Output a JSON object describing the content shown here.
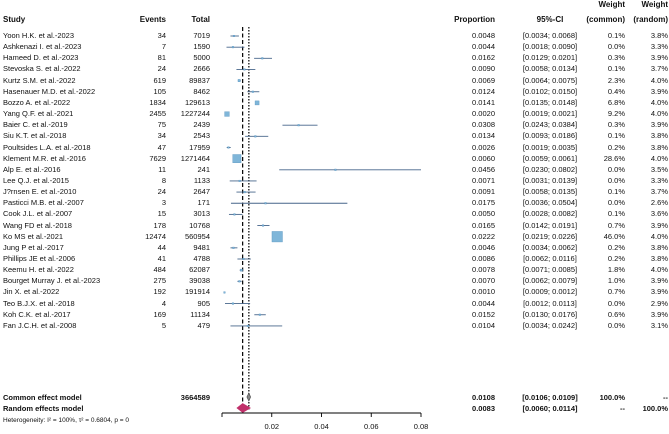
{
  "headers": {
    "study": "Study",
    "events": "Events",
    "total": "Total",
    "proportion": "Proportion",
    "ci": "95%-CI",
    "weight_common": [
      "Weight",
      "(common)"
    ],
    "weight_random": [
      "Weight",
      "(random)"
    ]
  },
  "rows": [
    {
      "study": "Yoon H.K. et al.-2023",
      "events": "34",
      "total": "7019",
      "proportion": "0.0048",
      "ci": "[0.0034; 0.0068]",
      "w_common": "0.1%",
      "w_random": "3.8%"
    },
    {
      "study": "Ashkenazi I. et al.-2023",
      "events": "7",
      "total": "1590",
      "proportion": "0.0044",
      "ci": "[0.0018; 0.0090]",
      "w_common": "0.0%",
      "w_random": "3.3%"
    },
    {
      "study": "Hameed D. et al.-2023",
      "events": "81",
      "total": "5000",
      "proportion": "0.0162",
      "ci": "[0.0129; 0.0201]",
      "w_common": "0.3%",
      "w_random": "3.9%"
    },
    {
      "study": "Stevoska S. et al.-2022",
      "events": "24",
      "total": "2666",
      "proportion": "0.0090",
      "ci": "[0.0058; 0.0134]",
      "w_common": "0.1%",
      "w_random": "3.7%"
    },
    {
      "study": "Kurtz S.M. et al.-2022",
      "events": "619",
      "total": "89837",
      "proportion": "0.0069",
      "ci": "[0.0064; 0.0075]",
      "w_common": "2.3%",
      "w_random": "4.0%"
    },
    {
      "study": "Hasenauer M.D. et al.-2022",
      "events": "105",
      "total": "8462",
      "proportion": "0.0124",
      "ci": "[0.0102; 0.0150]",
      "w_common": "0.4%",
      "w_random": "3.9%"
    },
    {
      "study": "Bozzo A. et al.-2022",
      "events": "1834",
      "total": "129613",
      "proportion": "0.0141",
      "ci": "[0.0135; 0.0148]",
      "w_common": "6.8%",
      "w_random": "4.0%"
    },
    {
      "study": "Yang Q.F. et al.-2021",
      "events": "2455",
      "total": "1227244",
      "proportion": "0.0020",
      "ci": "[0.0019; 0.0021]",
      "w_common": "9.2%",
      "w_random": "4.0%"
    },
    {
      "study": "Baier C. et al.-2019",
      "events": "75",
      "total": "2439",
      "proportion": "0.0308",
      "ci": "[0.0243; 0.0384]",
      "w_common": "0.3%",
      "w_random": "3.9%"
    },
    {
      "study": "Siu K.T. et al.-2018",
      "events": "34",
      "total": "2543",
      "proportion": "0.0134",
      "ci": "[0.0093; 0.0186]",
      "w_common": "0.1%",
      "w_random": "3.8%"
    },
    {
      "study": "Poultsides L.A. et al.-2018",
      "events": "47",
      "total": "17959",
      "proportion": "0.0026",
      "ci": "[0.0019; 0.0035]",
      "w_common": "0.2%",
      "w_random": "3.8%"
    },
    {
      "study": "Klement M.R. et al.-2016",
      "events": "7629",
      "total": "1271464",
      "proportion": "0.0060",
      "ci": "[0.0059; 0.0061]",
      "w_common": "28.6%",
      "w_random": "4.0%"
    },
    {
      "study": "Alp E. et al.-2016",
      "events": "11",
      "total": "241",
      "proportion": "0.0456",
      "ci": "[0.0230; 0.0802]",
      "w_common": "0.0%",
      "w_random": "3.5%"
    },
    {
      "study": "Lee Q.J. et al.-2015",
      "events": "8",
      "total": "1133",
      "proportion": "0.0071",
      "ci": "[0.0031; 0.0139]",
      "w_common": "0.0%",
      "w_random": "3.3%"
    },
    {
      "study": "J?rnsen E. et al.-2010",
      "events": "24",
      "total": "2647",
      "proportion": "0.0091",
      "ci": "[0.0058; 0.0135]",
      "w_common": "0.1%",
      "w_random": "3.7%"
    },
    {
      "study": "Pasticci M.B. et al.-2007",
      "events": "3",
      "total": "171",
      "proportion": "0.0175",
      "ci": "[0.0036; 0.0504]",
      "w_common": "0.0%",
      "w_random": "2.6%"
    },
    {
      "study": "Cook J.L. et al.-2007",
      "events": "15",
      "total": "3013",
      "proportion": "0.0050",
      "ci": "[0.0028; 0.0082]",
      "w_common": "0.1%",
      "w_random": "3.6%"
    },
    {
      "study": "Wang FD et al.-2018",
      "events": "178",
      "total": "10768",
      "proportion": "0.0165",
      "ci": "[0.0142; 0.0191]",
      "w_common": "0.7%",
      "w_random": "3.9%"
    },
    {
      "study": "Ko MS et al.-2021",
      "events": "12474",
      "total": "560954",
      "proportion": "0.0222",
      "ci": "[0.0219; 0.0226]",
      "w_common": "46.0%",
      "w_random": "4.0%"
    },
    {
      "study": "Jung P et al.-2017",
      "events": "44",
      "total": "9481",
      "proportion": "0.0046",
      "ci": "[0.0034; 0.0062]",
      "w_common": "0.2%",
      "w_random": "3.8%"
    },
    {
      "study": "Phillips JE et al.-2006",
      "events": "41",
      "total": "4788",
      "proportion": "0.0086",
      "ci": "[0.0062; 0.0116]",
      "w_common": "0.2%",
      "w_random": "3.8%"
    },
    {
      "study": "Keemu H. et al.-2022",
      "events": "484",
      "total": "62087",
      "proportion": "0.0078",
      "ci": "[0.0071; 0.0085]",
      "w_common": "1.8%",
      "w_random": "4.0%"
    },
    {
      "study": "Bourget Murray J. et al.-2023",
      "events": "275",
      "total": "39038",
      "proportion": "0.0070",
      "ci": "[0.0062; 0.0079]",
      "w_common": "1.0%",
      "w_random": "3.9%"
    },
    {
      "study": "Jin X. et al.-2022",
      "events": "192",
      "total": "191914",
      "proportion": "0.0010",
      "ci": "[0.0009; 0.0012]",
      "w_common": "0.7%",
      "w_random": "3.9%"
    },
    {
      "study": "Teo B.J.X. et al.-2018",
      "events": "4",
      "total": "905",
      "proportion": "0.0044",
      "ci": "[0.0012; 0.0113]",
      "w_common": "0.0%",
      "w_random": "2.9%"
    },
    {
      "study": "Koh C.K. et al.-2017",
      "events": "169",
      "total": "11134",
      "proportion": "0.0152",
      "ci": "[0.0130; 0.0176]",
      "w_common": "0.6%",
      "w_random": "3.9%"
    },
    {
      "study": "Fan J.C.H. et al.-2008",
      "events": "5",
      "total": "479",
      "proportion": "0.0104",
      "ci": "[0.0034; 0.0242]",
      "w_common": "0.0%",
      "w_random": "3.1%"
    }
  ],
  "summary": {
    "common": {
      "label": "Common effect model",
      "total": "3664589",
      "proportion": "0.0108",
      "ci": "[0.0106; 0.0109]",
      "w_common": "100.0%",
      "w_random": "--"
    },
    "random": {
      "label": "Random effects model",
      "proportion": "0.0083",
      "ci": "[0.0060; 0.0114]",
      "w_common": "--",
      "w_random": "100.0%"
    },
    "heterogeneity": "Heterogeneity: I² = 100%, τ² = 0.6804, p = 0"
  },
  "chart_data": {
    "type": "forest",
    "x_ticks": [
      "0.02",
      "0.04",
      "0.06",
      "0.08"
    ],
    "x_tick_values": [
      0.02,
      0.04,
      0.06,
      0.08
    ],
    "xlim": [
      0,
      0.08
    ],
    "points": [
      {
        "est": 0.0048,
        "lo": 0.0034,
        "hi": 0.0068,
        "weight": 0.1
      },
      {
        "est": 0.0044,
        "lo": 0.0018,
        "hi": 0.009,
        "weight": 0.0
      },
      {
        "est": 0.0162,
        "lo": 0.0129,
        "hi": 0.0201,
        "weight": 0.3
      },
      {
        "est": 0.009,
        "lo": 0.0058,
        "hi": 0.0134,
        "weight": 0.1
      },
      {
        "est": 0.0069,
        "lo": 0.0064,
        "hi": 0.0075,
        "weight": 2.3
      },
      {
        "est": 0.0124,
        "lo": 0.0102,
        "hi": 0.015,
        "weight": 0.4
      },
      {
        "est": 0.0141,
        "lo": 0.0135,
        "hi": 0.0148,
        "weight": 6.8
      },
      {
        "est": 0.002,
        "lo": 0.0019,
        "hi": 0.0021,
        "weight": 9.2
      },
      {
        "est": 0.0308,
        "lo": 0.0243,
        "hi": 0.0384,
        "weight": 0.3
      },
      {
        "est": 0.0134,
        "lo": 0.0093,
        "hi": 0.0186,
        "weight": 0.1
      },
      {
        "est": 0.0026,
        "lo": 0.0019,
        "hi": 0.0035,
        "weight": 0.2
      },
      {
        "est": 0.006,
        "lo": 0.0059,
        "hi": 0.0061,
        "weight": 28.6
      },
      {
        "est": 0.0456,
        "lo": 0.023,
        "hi": 0.0802,
        "weight": 0.0
      },
      {
        "est": 0.0071,
        "lo": 0.0031,
        "hi": 0.0139,
        "weight": 0.0
      },
      {
        "est": 0.0091,
        "lo": 0.0058,
        "hi": 0.0135,
        "weight": 0.1
      },
      {
        "est": 0.0175,
        "lo": 0.0036,
        "hi": 0.0504,
        "weight": 0.0
      },
      {
        "est": 0.005,
        "lo": 0.0028,
        "hi": 0.0082,
        "weight": 0.1
      },
      {
        "est": 0.0165,
        "lo": 0.0142,
        "hi": 0.0191,
        "weight": 0.7
      },
      {
        "est": 0.0222,
        "lo": 0.0219,
        "hi": 0.0226,
        "weight": 46.0
      },
      {
        "est": 0.0046,
        "lo": 0.0034,
        "hi": 0.0062,
        "weight": 0.2
      },
      {
        "est": 0.0086,
        "lo": 0.0062,
        "hi": 0.0116,
        "weight": 0.2
      },
      {
        "est": 0.0078,
        "lo": 0.0071,
        "hi": 0.0085,
        "weight": 1.8
      },
      {
        "est": 0.007,
        "lo": 0.0062,
        "hi": 0.0079,
        "weight": 1.0
      },
      {
        "est": 0.001,
        "lo": 0.0009,
        "hi": 0.0012,
        "weight": 0.7
      },
      {
        "est": 0.0044,
        "lo": 0.0012,
        "hi": 0.0113,
        "weight": 0.0
      },
      {
        "est": 0.0152,
        "lo": 0.013,
        "hi": 0.0176,
        "weight": 0.6
      },
      {
        "est": 0.0104,
        "lo": 0.0034,
        "hi": 0.0242,
        "weight": 0.0
      }
    ],
    "common_effect": {
      "est": 0.0108,
      "lo": 0.0106,
      "hi": 0.0109
    },
    "random_effects": {
      "est": 0.0083,
      "lo": 0.006,
      "hi": 0.0114
    },
    "colors": {
      "box": "#7fb6d9",
      "box_border": "#5b95bf",
      "line": "#46658a",
      "diamond": "#c0306a",
      "axis": "#000000"
    }
  }
}
